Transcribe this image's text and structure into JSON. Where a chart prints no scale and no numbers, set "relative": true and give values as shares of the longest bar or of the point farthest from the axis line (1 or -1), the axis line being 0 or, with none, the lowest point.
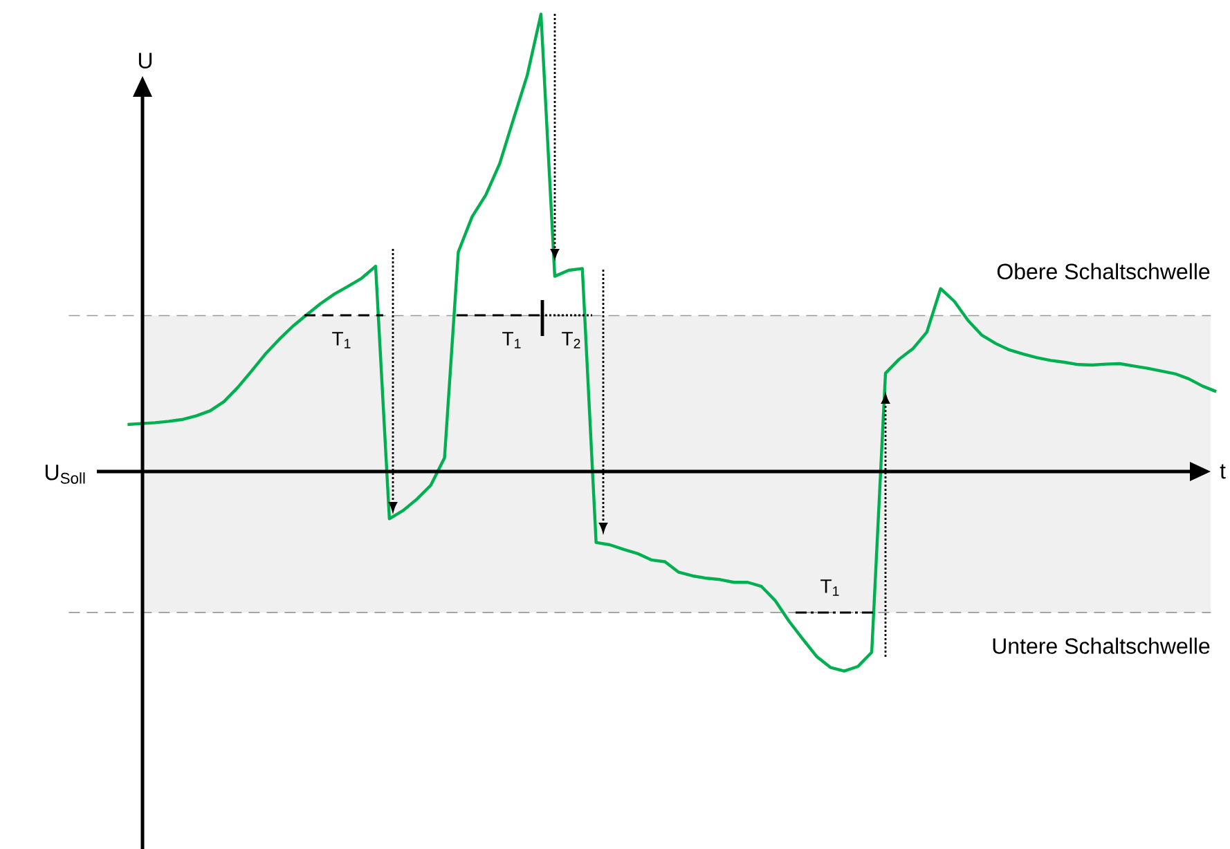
{
  "chart_data": {
    "type": "line",
    "relative": true,
    "xlabel": "t",
    "ylabel": "U",
    "annotations": [
      "U$_{Soll}$",
      "T$_{1}$",
      "T$_{1}$",
      "T$_{2}$",
      "T$_{1}$"
    ],
    "ref_lines": [
      {
        "axis": "y",
        "value": 0.341,
        "label": "Obere Schaltschwelle",
        "color": "#999999",
        "line_style": "dashed"
      },
      {
        "axis": "y",
        "value": -0.308,
        "label": "Untere Schaltschwelle",
        "color": "#999999",
        "line_style": "dashed"
      }
    ],
    "bands": [
      {
        "axis": "y",
        "from": -0.308,
        "to": 0.341,
        "color": "#f0f0f0"
      }
    ],
    "categories": [
      null,
      null,
      null,
      null,
      null,
      null,
      null,
      null,
      null,
      null,
      null,
      null,
      null,
      null,
      null,
      null,
      null,
      null,
      null,
      null,
      null,
      null,
      null,
      null,
      null,
      null,
      null,
      null,
      null,
      null,
      null,
      null,
      null,
      null,
      null,
      null,
      null,
      null,
      null,
      null,
      null,
      null,
      null,
      null,
      null,
      null,
      null,
      null,
      null,
      null,
      null,
      null,
      null,
      null,
      null,
      null,
      null,
      null,
      null,
      null,
      null,
      null,
      null,
      null,
      null,
      null,
      null,
      null,
      null,
      null,
      null,
      null,
      null,
      null,
      null,
      null,
      null,
      null,
      null,
      null
    ],
    "series": [
      {
        "color": "#00b050",
        "values": [
          0.103,
          0.105,
          0.107,
          0.11,
          0.114,
          0.122,
          0.133,
          0.153,
          0.184,
          0.22,
          0.257,
          0.289,
          0.318,
          0.343,
          0.367,
          0.388,
          0.405,
          0.423,
          0.449,
          -0.103,
          -0.085,
          -0.06,
          -0.03,
          0.03,
          0.48,
          0.557,
          0.605,
          0.673,
          0.77,
          0.866,
          1,
          0.427,
          0.44,
          0.444,
          -0.155,
          -0.16,
          -0.17,
          -0.179,
          -0.193,
          -0.197,
          -0.22,
          -0.228,
          -0.233,
          -0.236,
          -0.242,
          -0.242,
          -0.251,
          -0.282,
          -0.327,
          -0.366,
          -0.404,
          -0.428,
          -0.436,
          -0.426,
          -0.395,
          0.215,
          0.246,
          0.269,
          0.305,
          0.4,
          0.372,
          0.33,
          0.298,
          0.28,
          0.266,
          0.257,
          0.249,
          0.243,
          0.239,
          0.234,
          0.233,
          0.235,
          0.236,
          0.231,
          0.226,
          0.22,
          0.214,
          0.203,
          0.187,
          0.175
        ]
      }
    ]
  }
}
